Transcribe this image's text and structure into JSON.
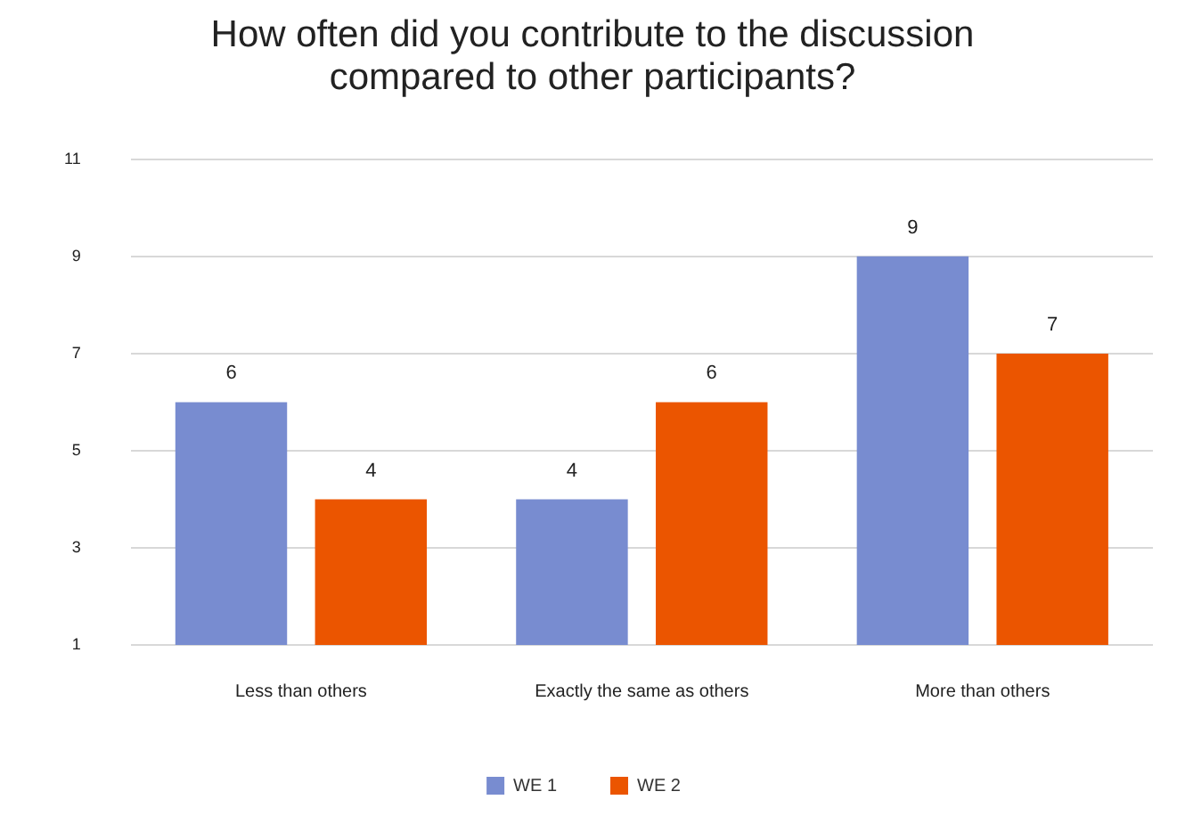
{
  "chart_data": {
    "type": "bar",
    "title": "How often did you contribute to the discussion compared to other participants?",
    "categories": [
      "Less than others",
      "Exactly the same as others",
      "More than others"
    ],
    "series": [
      {
        "name": "WE 1",
        "color": "#788cd0",
        "values": [
          6,
          4,
          9
        ]
      },
      {
        "name": "WE 2",
        "color": "#eb5500",
        "values": [
          4,
          6,
          7
        ]
      }
    ],
    "ylim": [
      1,
      11
    ],
    "yticks": [
      1,
      3,
      5,
      7,
      9,
      11
    ],
    "grid": "y",
    "legend": "bottom",
    "data_labels": true
  }
}
